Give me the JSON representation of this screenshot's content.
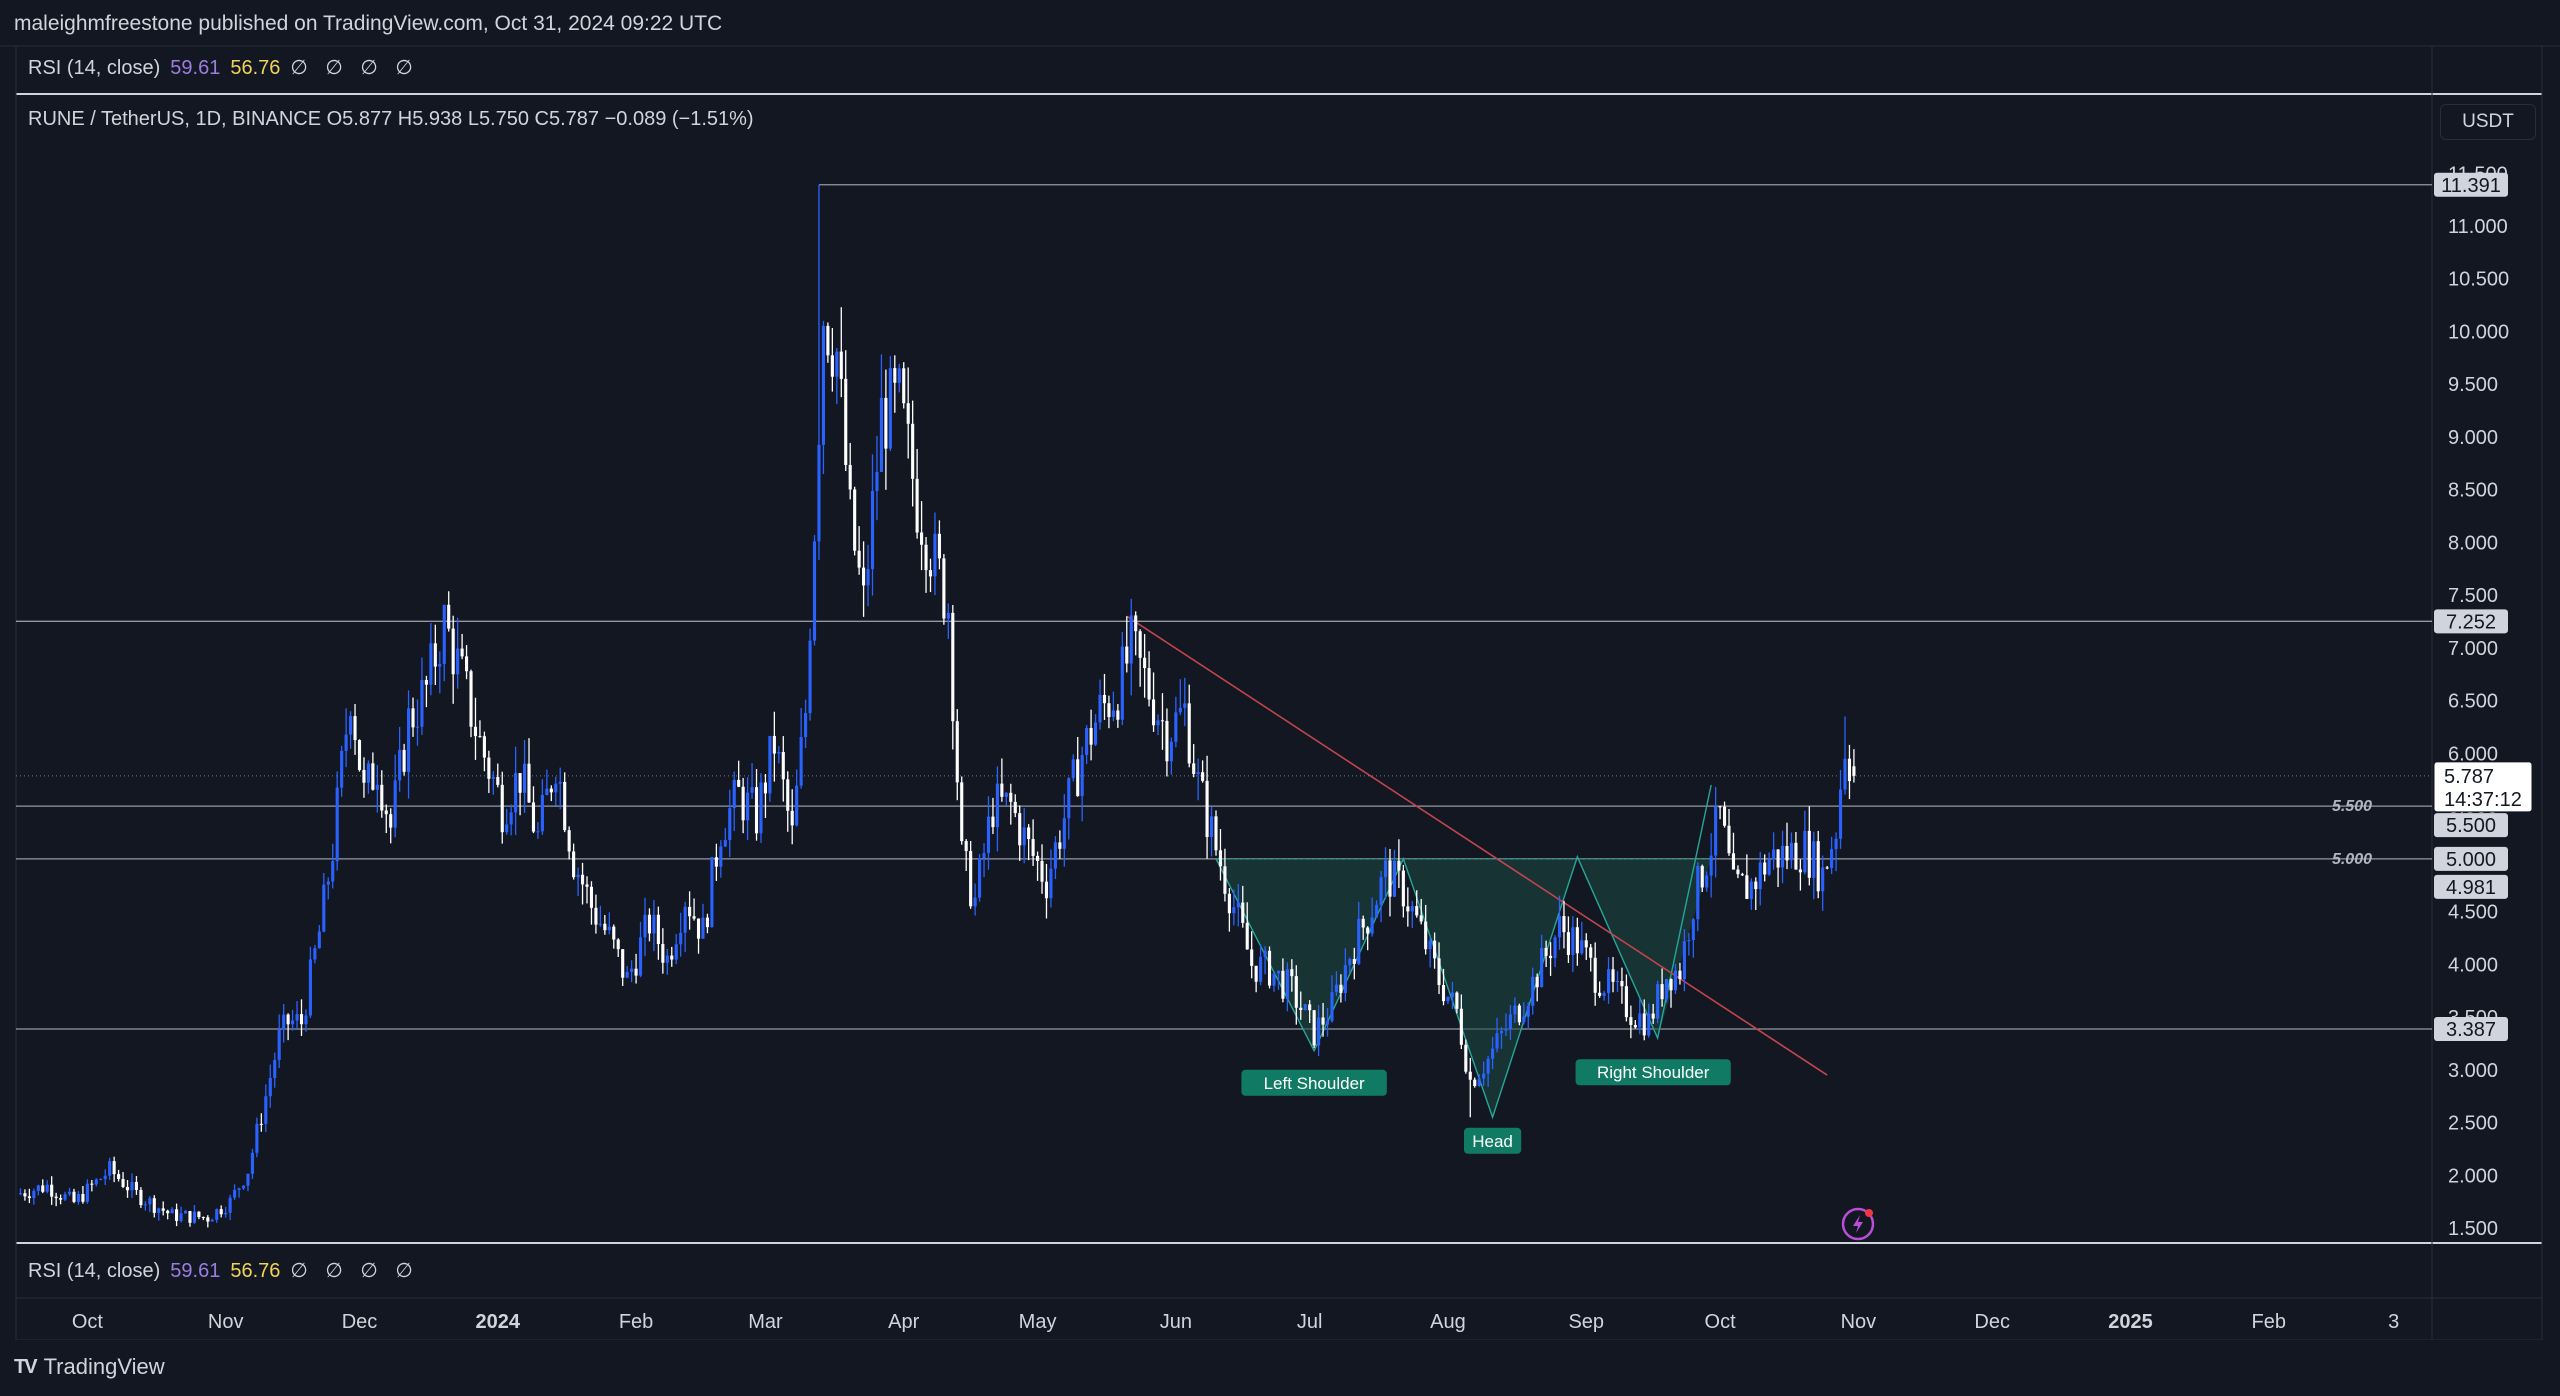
{
  "header": {
    "attribution": "maleighmfreestone published on TradingView.com, Oct 31, 2024 09:22 UTC"
  },
  "rsi_legend": {
    "name": "RSI (14, close)",
    "value1": "59.61",
    "value2": "56.76",
    "na": "∅ ∅ ∅ ∅"
  },
  "symbol_info": "RUNE / TetherUS, 1D, BINANCE  O5.877  H5.938  L5.750  C5.787  −0.089 (−1.51%)",
  "currency": "USDT",
  "footer": {
    "brand": "TradingView"
  },
  "colors": {
    "background": "#131722",
    "candle_up": "#2962ff",
    "candle_down": "#ffffff",
    "pattern_fill": "#1b4a44",
    "pattern_line": "#26a69a",
    "trendline": "#c2444e",
    "label_bg": "#d1d4dc",
    "rsi_value1": "#9b7de0",
    "rsi_value2": "#f0d35a"
  },
  "chart_data": {
    "type": "candlestick",
    "symbol": "RUNE / TetherUS",
    "interval": "1D",
    "exchange": "BINANCE",
    "ohlc_last": {
      "open": 5.877,
      "high": 5.938,
      "low": 5.75,
      "close": 5.787,
      "change": -0.089,
      "change_pct": -1.51
    },
    "y_axis": {
      "range": [
        1.25,
        11.6
      ],
      "ticks": [
        1.5,
        2.0,
        2.5,
        3.0,
        3.5,
        4.0,
        4.5,
        5.0,
        5.5,
        6.0,
        6.5,
        7.0,
        7.5,
        8.0,
        8.5,
        9.0,
        9.5,
        10.0,
        10.5,
        11.0,
        11.5
      ],
      "tick_labels": [
        "1.500",
        "2.000",
        "2.500",
        "3.000",
        "3.500",
        "4.000",
        "4.500",
        "5.000",
        "5.500",
        "6.000",
        "6.500",
        "7.000",
        "7.500",
        "8.000",
        "8.500",
        "9.000",
        "9.500",
        "10.000",
        "10.500",
        "11.000",
        "11.500"
      ]
    },
    "x_axis": {
      "range": [
        "2023-09-15",
        "2025-03-06"
      ],
      "ticks": [
        {
          "date": "2023-10-01",
          "label": "Oct",
          "bold": false
        },
        {
          "date": "2023-11-01",
          "label": "Nov",
          "bold": false
        },
        {
          "date": "2023-12-01",
          "label": "Dec",
          "bold": false
        },
        {
          "date": "2024-01-01",
          "label": "2024",
          "bold": true
        },
        {
          "date": "2024-02-01",
          "label": "Feb",
          "bold": false
        },
        {
          "date": "2024-03-01",
          "label": "Mar",
          "bold": false
        },
        {
          "date": "2024-04-01",
          "label": "Apr",
          "bold": false
        },
        {
          "date": "2024-05-01",
          "label": "May",
          "bold": false
        },
        {
          "date": "2024-06-01",
          "label": "Jun",
          "bold": false
        },
        {
          "date": "2024-07-01",
          "label": "Jul",
          "bold": false
        },
        {
          "date": "2024-08-01",
          "label": "Aug",
          "bold": false
        },
        {
          "date": "2024-09-01",
          "label": "Sep",
          "bold": false
        },
        {
          "date": "2024-10-01",
          "label": "Oct",
          "bold": false
        },
        {
          "date": "2024-11-01",
          "label": "Nov",
          "bold": false
        },
        {
          "date": "2024-12-01",
          "label": "Dec",
          "bold": false
        },
        {
          "date": "2025-01-01",
          "label": "2025",
          "bold": true
        },
        {
          "date": "2025-02-01",
          "label": "Feb",
          "bold": false
        },
        {
          "date": "2025-03-01",
          "label": "3",
          "bold": false
        }
      ]
    },
    "horizontal_levels": [
      {
        "price": 11.391,
        "label": "11.391",
        "line_start": "2024-03-13"
      },
      {
        "price": 7.252,
        "label": "7.252",
        "line_start": "2023-09-15"
      },
      {
        "price": 5.5,
        "label": "5.500",
        "line_start": "2023-09-15"
      },
      {
        "price": 5.0,
        "label": "5.000",
        "line_start": "2023-09-15"
      },
      {
        "price": 4.981,
        "label": "4.981",
        "line_start": ""
      },
      {
        "price": 3.387,
        "label": "3.387",
        "line_start": "2023-09-15"
      }
    ],
    "axis_line_labels": [
      {
        "price": 5.5,
        "text": "5.500"
      },
      {
        "price": 5.0,
        "text": "5.000"
      }
    ],
    "last_price": {
      "price": 5.787,
      "label": "5.787",
      "countdown": "14:37:12"
    },
    "trendline": {
      "start": {
        "date": "2024-05-21",
        "price": 7.3
      },
      "end": {
        "date": "2024-10-25",
        "price": 2.95
      }
    },
    "pattern": {
      "name": "Head and Shoulders (inverse)",
      "points": [
        {
          "date": "2024-06-10",
          "price": 5.0
        },
        {
          "date": "2024-07-02",
          "price": 3.18
        },
        {
          "date": "2024-07-22",
          "price": 5.0
        },
        {
          "date": "2024-08-11",
          "price": 2.55
        },
        {
          "date": "2024-08-30",
          "price": 5.02
        },
        {
          "date": "2024-09-17",
          "price": 3.3
        },
        {
          "date": "2024-09-29",
          "price": 5.7
        }
      ],
      "labels": [
        {
          "text": "Left Shoulder",
          "date": "2024-07-02",
          "price": 3.0
        },
        {
          "text": "Head",
          "date": "2024-08-11",
          "price": 2.45
        },
        {
          "text": "Right Shoulder",
          "date": "2024-09-16",
          "price": 3.1
        }
      ]
    },
    "price_path": [
      [
        "2023-09-15",
        1.82
      ],
      [
        "2023-09-22",
        1.9
      ],
      [
        "2023-09-28",
        1.74
      ],
      [
        "2023-10-06",
        2.05
      ],
      [
        "2023-10-12",
        1.82
      ],
      [
        "2023-10-20",
        1.62
      ],
      [
        "2023-10-28",
        1.6
      ],
      [
        "2023-11-02",
        1.75
      ],
      [
        "2023-11-06",
        2.05
      ],
      [
        "2023-11-10",
        2.75
      ],
      [
        "2023-11-13",
        3.3
      ],
      [
        "2023-11-15",
        3.45
      ],
      [
        "2023-11-18",
        3.45
      ],
      [
        "2023-11-22",
        4.3
      ],
      [
        "2023-11-25",
        5.1
      ],
      [
        "2023-11-29",
        6.6
      ],
      [
        "2023-12-02",
        5.6
      ],
      [
        "2023-12-05",
        5.9
      ],
      [
        "2023-12-08",
        5.3
      ],
      [
        "2023-12-12",
        6.3
      ],
      [
        "2023-12-16",
        6.6
      ],
      [
        "2023-12-20",
        7.25
      ],
      [
        "2023-12-24",
        6.7
      ],
      [
        "2023-12-28",
        6.1
      ],
      [
        "2024-01-02",
        5.5
      ],
      [
        "2024-01-06",
        5.8
      ],
      [
        "2024-01-10",
        5.2
      ],
      [
        "2024-01-14",
        5.95
      ],
      [
        "2024-01-18",
        5.0
      ],
      [
        "2024-01-22",
        4.55
      ],
      [
        "2024-01-26",
        4.25
      ],
      [
        "2024-01-30",
        3.85
      ],
      [
        "2024-02-04",
        4.4
      ],
      [
        "2024-02-08",
        4.05
      ],
      [
        "2024-02-12",
        4.65
      ],
      [
        "2024-02-16",
        4.3
      ],
      [
        "2024-02-20",
        5.3
      ],
      [
        "2024-02-24",
        5.6
      ],
      [
        "2024-02-28",
        5.4
      ],
      [
        "2024-03-03",
        6.1
      ],
      [
        "2024-03-07",
        5.2
      ],
      [
        "2024-03-10",
        6.4
      ],
      [
        "2024-03-12",
        8.2
      ],
      [
        "2024-03-14",
        10.2
      ],
      [
        "2024-03-17",
        9.8
      ],
      [
        "2024-03-20",
        8.2
      ],
      [
        "2024-03-23",
        7.4
      ],
      [
        "2024-03-27",
        9.2
      ],
      [
        "2024-03-31",
        9.3
      ],
      [
        "2024-04-04",
        8.4
      ],
      [
        "2024-04-08",
        7.8
      ],
      [
        "2024-04-11",
        7.4
      ],
      [
        "2024-04-14",
        5.0
      ],
      [
        "2024-04-17",
        4.6
      ],
      [
        "2024-04-21",
        5.5
      ],
      [
        "2024-04-25",
        5.5
      ],
      [
        "2024-04-29",
        5.1
      ],
      [
        "2024-05-03",
        4.8
      ],
      [
        "2024-05-07",
        5.4
      ],
      [
        "2024-05-11",
        6.0
      ],
      [
        "2024-05-15",
        6.4
      ],
      [
        "2024-05-19",
        6.6
      ],
      [
        "2024-05-22",
        7.0
      ],
      [
        "2024-05-26",
        6.6
      ],
      [
        "2024-05-30",
        6.2
      ],
      [
        "2024-06-03",
        6.4
      ],
      [
        "2024-06-06",
        5.7
      ],
      [
        "2024-06-10",
        5.1
      ],
      [
        "2024-06-14",
        4.55
      ],
      [
        "2024-06-18",
        4.0
      ],
      [
        "2024-06-22",
        3.95
      ],
      [
        "2024-06-27",
        3.75
      ],
      [
        "2024-07-02",
        3.35
      ],
      [
        "2024-07-06",
        3.6
      ],
      [
        "2024-07-10",
        4.1
      ],
      [
        "2024-07-14",
        4.45
      ],
      [
        "2024-07-18",
        4.85
      ],
      [
        "2024-07-22",
        4.7
      ],
      [
        "2024-07-26",
        4.3
      ],
      [
        "2024-07-30",
        3.85
      ],
      [
        "2024-08-03",
        3.55
      ],
      [
        "2024-08-06",
        2.9
      ],
      [
        "2024-08-10",
        3.1
      ],
      [
        "2024-08-14",
        3.4
      ],
      [
        "2024-08-18",
        3.65
      ],
      [
        "2024-08-22",
        4.0
      ],
      [
        "2024-08-26",
        4.35
      ],
      [
        "2024-08-30",
        4.2
      ],
      [
        "2024-09-03",
        3.9
      ],
      [
        "2024-09-07",
        3.75
      ],
      [
        "2024-09-11",
        3.55
      ],
      [
        "2024-09-15",
        3.45
      ],
      [
        "2024-09-19",
        3.9
      ],
      [
        "2024-09-22",
        3.95
      ],
      [
        "2024-09-25",
        4.6
      ],
      [
        "2024-09-28",
        5.0
      ],
      [
        "2024-10-01",
        5.4
      ],
      [
        "2024-10-04",
        4.7
      ],
      [
        "2024-10-08",
        4.75
      ],
      [
        "2024-10-12",
        5.0
      ],
      [
        "2024-10-16",
        5.05
      ],
      [
        "2024-10-20",
        5.1
      ],
      [
        "2024-10-24",
        4.85
      ],
      [
        "2024-10-27",
        5.3
      ],
      [
        "2024-10-29",
        6.1
      ],
      [
        "2024-10-31",
        5.787
      ]
    ]
  }
}
